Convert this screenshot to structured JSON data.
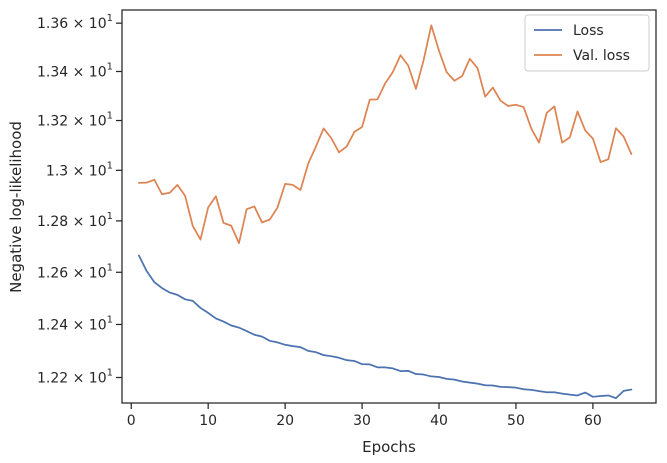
{
  "chart_data": {
    "type": "line",
    "xlabel": "Epochs",
    "ylabel": "Negative log-likelihood",
    "xlim": [
      -1.2,
      68.2
    ],
    "ylim": [
      12.105,
      13.655
    ],
    "y_scale": "log",
    "grid": false,
    "legend_position": "top-right",
    "x_ticks": [
      {
        "value": 0,
        "label": "0"
      },
      {
        "value": 10,
        "label": "10"
      },
      {
        "value": 20,
        "label": "20"
      },
      {
        "value": 30,
        "label": "30"
      },
      {
        "value": 40,
        "label": "40"
      },
      {
        "value": 50,
        "label": "50"
      },
      {
        "value": 60,
        "label": "60"
      }
    ],
    "y_ticks": [
      {
        "value": 12.2,
        "mantissa": "1.22",
        "base": "10",
        "exp": "1"
      },
      {
        "value": 12.4,
        "mantissa": "1.24",
        "base": "10",
        "exp": "1"
      },
      {
        "value": 12.6,
        "mantissa": "1.26",
        "base": "10",
        "exp": "1"
      },
      {
        "value": 12.8,
        "mantissa": "1.28",
        "base": "10",
        "exp": "1"
      },
      {
        "value": 13.0,
        "mantissa": "1.3",
        "base": "10",
        "exp": "1"
      },
      {
        "value": 13.2,
        "mantissa": "1.32",
        "base": "10",
        "exp": "1"
      },
      {
        "value": 13.4,
        "mantissa": "1.34",
        "base": "10",
        "exp": "1"
      },
      {
        "value": 13.6,
        "mantissa": "1.36",
        "base": "10",
        "exp": "1"
      }
    ],
    "x": [
      1,
      2,
      3,
      4,
      5,
      6,
      7,
      8,
      9,
      10,
      11,
      12,
      13,
      14,
      15,
      16,
      17,
      18,
      19,
      20,
      21,
      22,
      23,
      24,
      25,
      26,
      27,
      28,
      29,
      30,
      31,
      32,
      33,
      34,
      35,
      36,
      37,
      38,
      39,
      40,
      41,
      42,
      43,
      44,
      45,
      46,
      47,
      48,
      49,
      50,
      51,
      52,
      53,
      54,
      55,
      56,
      57,
      58,
      59,
      60,
      61,
      62,
      63,
      64,
      65
    ],
    "series": [
      {
        "name": "Loss",
        "color": "#4c72b0",
        "values": [
          12.665,
          12.605,
          12.562,
          12.539,
          12.522,
          12.513,
          12.496,
          12.49,
          12.463,
          12.444,
          12.423,
          12.411,
          12.396,
          12.388,
          12.375,
          12.361,
          12.354,
          12.338,
          12.332,
          12.323,
          12.318,
          12.314,
          12.3,
          12.295,
          12.284,
          12.28,
          12.274,
          12.265,
          12.262,
          12.25,
          12.249,
          12.238,
          12.238,
          12.234,
          12.224,
          12.225,
          12.213,
          12.211,
          12.204,
          12.202,
          12.195,
          12.192,
          12.185,
          12.181,
          12.177,
          12.171,
          12.17,
          12.165,
          12.164,
          12.162,
          12.156,
          12.154,
          12.149,
          12.145,
          12.145,
          12.14,
          12.136,
          12.133,
          12.144,
          12.128,
          12.131,
          12.133,
          12.123,
          12.15,
          12.155
        ]
      },
      {
        "name": "Val. loss",
        "color": "#dd8452",
        "values": [
          12.95,
          12.951,
          12.963,
          12.905,
          12.911,
          12.942,
          12.899,
          12.78,
          12.727,
          12.853,
          12.897,
          12.792,
          12.781,
          12.713,
          12.846,
          12.857,
          12.794,
          12.805,
          12.852,
          12.946,
          12.942,
          12.922,
          13.027,
          13.095,
          13.168,
          13.129,
          13.072,
          13.095,
          13.154,
          13.174,
          13.285,
          13.286,
          13.351,
          13.398,
          13.467,
          13.424,
          13.329,
          13.447,
          13.591,
          13.485,
          13.397,
          13.362,
          13.381,
          13.452,
          13.414,
          13.297,
          13.334,
          13.28,
          13.259,
          13.264,
          13.254,
          13.167,
          13.111,
          13.231,
          13.257,
          13.111,
          13.132,
          13.237,
          13.16,
          13.127,
          13.033,
          13.044,
          13.169,
          13.135,
          13.065
        ]
      }
    ]
  }
}
